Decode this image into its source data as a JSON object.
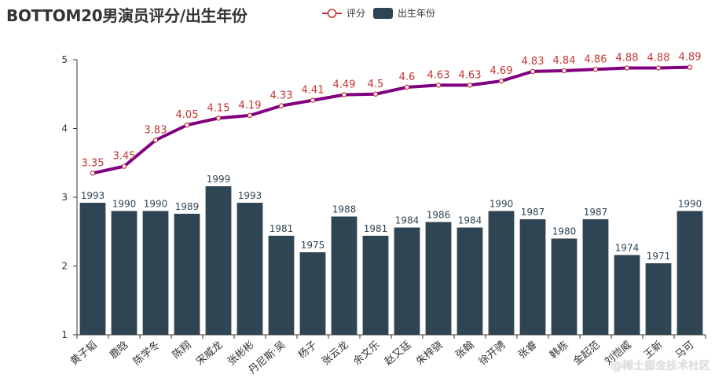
{
  "chart_data": {
    "type": "bar",
    "title": "BOTTOM20男演员评分/出生年份",
    "legend": [
      "评分",
      "出生年份"
    ],
    "categories": [
      "黄子韬",
      "鹿晗",
      "陈学冬",
      "陈翔",
      "宋威龙",
      "张彬彬",
      "丹尼斯·吴",
      "杨子",
      "张云龙",
      "余文乐",
      "赵又廷",
      "朱梓骁",
      "张翰",
      "徐开骋",
      "张睿",
      "韩栋",
      "金起范",
      "刘恺威",
      "王新",
      "马可"
    ],
    "series": [
      {
        "name": "评分",
        "type": "line",
        "color": "#800080",
        "label_color": "#c23531",
        "values": [
          3.35,
          3.45,
          3.83,
          4.05,
          4.15,
          4.19,
          4.33,
          4.41,
          4.49,
          4.5,
          4.6,
          4.63,
          4.63,
          4.69,
          4.83,
          4.84,
          4.86,
          4.88,
          4.88,
          4.89
        ]
      },
      {
        "name": "出生年份",
        "type": "bar",
        "color": "#2f4554",
        "values": [
          1993,
          1990,
          1990,
          1989,
          1999,
          1993,
          1981,
          1975,
          1988,
          1981,
          1984,
          1986,
          1984,
          1990,
          1987,
          1980,
          1987,
          1974,
          1971,
          1990
        ]
      }
    ],
    "yaxis_ticks": [
      "1",
      "2",
      "3",
      "4",
      "5"
    ],
    "ylim": [
      1,
      5
    ],
    "bar_value_range": [
      1945,
      2045
    ]
  },
  "watermark": "@稀土掘金技术社区"
}
